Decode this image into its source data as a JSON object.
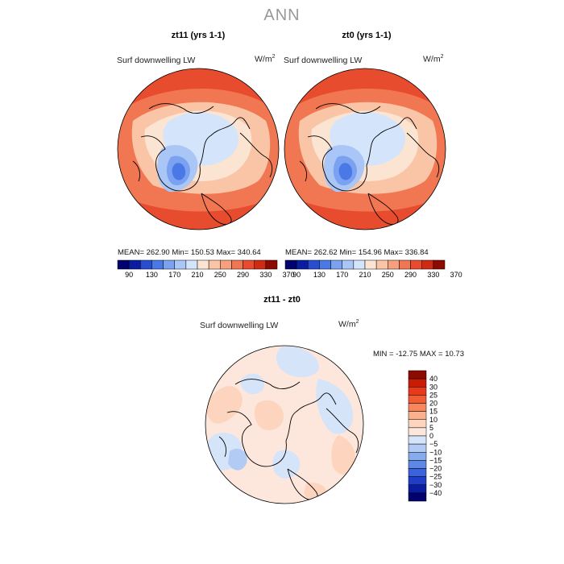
{
  "chart_data": [
    {
      "type": "heatmap",
      "projection": "north-polar-stereographic",
      "title": "zt11 (yrs 1-1)",
      "field": "Surf downwelling LW",
      "units_base": "W/m",
      "units_exp": "2",
      "stats": "MEAN= 262.90   Min= 150.53   Max= 340.64",
      "mean": 262.9,
      "min": 150.53,
      "max": 340.64,
      "colorbar_ticks": [
        "90",
        "130",
        "170",
        "210",
        "250",
        "290",
        "330",
        "370"
      ]
    },
    {
      "type": "heatmap",
      "projection": "north-polar-stereographic",
      "title": "zt0 (yrs 1-1)",
      "field": "Surf downwelling LW",
      "units_base": "W/m",
      "units_exp": "2",
      "stats": "MEAN= 262.62   Min= 154.96   Max= 336.84",
      "mean": 262.62,
      "min": 154.96,
      "max": 336.84,
      "colorbar_ticks": [
        "90",
        "130",
        "170",
        "210",
        "250",
        "290",
        "330",
        "370"
      ]
    },
    {
      "type": "heatmap",
      "projection": "north-polar-stereographic",
      "title": "zt11 - zt0",
      "field": "Surf downwelling LW",
      "units_base": "W/m",
      "units_exp": "2",
      "stats": "MIN = -12.75  MAX =  10.73",
      "min": -12.75,
      "max": 10.73,
      "colorbar_ticks": [
        "40",
        "30",
        "25",
        "20",
        "15",
        "10",
        "5",
        "0",
        "−5",
        "−10",
        "−15",
        "−20",
        "−25",
        "−30",
        "−40"
      ]
    }
  ],
  "page_title": "ANN",
  "colors": {
    "abs_scale": [
      "#00006e",
      "#0a1ca0",
      "#2a4ccf",
      "#4a78e6",
      "#7aa2f0",
      "#a9c6f6",
      "#d4e5fb",
      "#fbe4d2",
      "#f9c5a6",
      "#f6a07e",
      "#f17652",
      "#e84c2e",
      "#cf2a14",
      "#8c0a00"
    ],
    "diff_scale": [
      "#8c0a00",
      "#c81c05",
      "#e8391a",
      "#f25c33",
      "#f7855d",
      "#fbb08e",
      "#fdd5bf",
      "#fde7dc",
      "#d6e4fa",
      "#b1cbf4",
      "#87acee",
      "#5e88e6",
      "#3a62dc",
      "#1f3dc6",
      "#0a1ca0",
      "#00006e"
    ]
  }
}
